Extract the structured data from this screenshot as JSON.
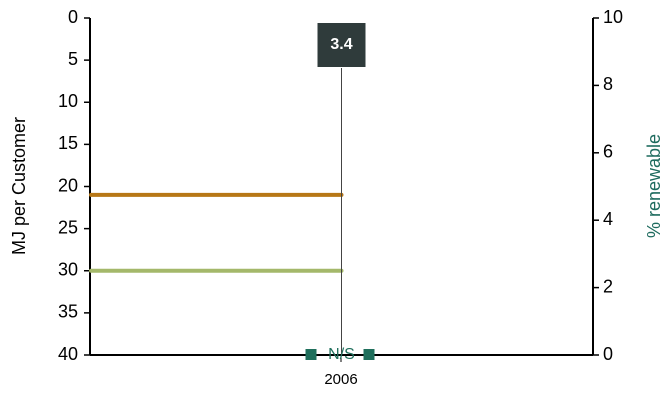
{
  "chart_data": {
    "type": "bar",
    "categories": [
      "2006"
    ],
    "left_axis": {
      "label": "MJ per Customer",
      "ylim": [
        0,
        40
      ],
      "inverted": true,
      "ticks": [
        0,
        5,
        10,
        15,
        20,
        25,
        30,
        35,
        40
      ]
    },
    "right_axis": {
      "label": "% renewable",
      "ylim": [
        0,
        10
      ],
      "ticks": [
        0,
        2,
        4,
        6,
        8,
        10
      ],
      "label_color": "#1e6b5e"
    },
    "bar": {
      "category": "2006",
      "value": 3.4,
      "label": "3.4",
      "color": "#2f3b3b"
    },
    "reference_lines": [
      {
        "value": 21,
        "color": "#b77716"
      },
      {
        "value": 30,
        "color": "#a4b86a"
      }
    ],
    "annotation": {
      "text": "N/S",
      "category": "2006",
      "color": "#1f6f5c"
    },
    "grid": false,
    "legend": "none"
  }
}
